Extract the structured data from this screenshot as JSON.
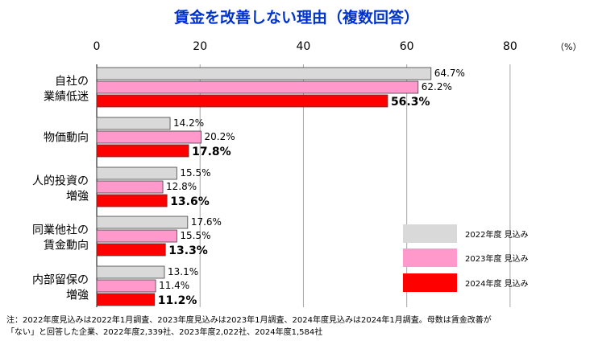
{
  "chart_data": {
    "type": "bar",
    "orientation": "horizontal",
    "title": "賃金を改善しない理由（複数回答）",
    "unit": "（%）",
    "xlim": [
      0,
      90
    ],
    "ticks": [
      0,
      20,
      40,
      60,
      80
    ],
    "categories": [
      [
        "自社の",
        "業績低迷"
      ],
      [
        "物価動向"
      ],
      [
        "人的投資の",
        "増強"
      ],
      [
        "同業他社の",
        "賃金動向"
      ],
      [
        "内部留保の",
        "増強"
      ]
    ],
    "series": [
      {
        "name": "2022年度 見込み",
        "color": "#d9d9d9",
        "values": [
          64.7,
          14.2,
          15.5,
          17.6,
          13.1
        ],
        "labels": [
          "64.7%",
          "14.2%",
          "15.5%",
          "17.6%",
          "13.1%"
        ]
      },
      {
        "name": "2023年度 見込み",
        "color": "#ff99cc",
        "values": [
          62.2,
          20.2,
          12.8,
          15.5,
          11.4
        ],
        "labels": [
          "62.2%",
          "20.2%",
          "12.8%",
          "15.5%",
          "11.4%"
        ]
      },
      {
        "name": "2024年度 見込み",
        "color": "#ff0000",
        "values": [
          56.3,
          17.8,
          13.6,
          13.3,
          11.2
        ],
        "labels": [
          "56.3%",
          "17.8%",
          "13.6%",
          "13.3%",
          "11.2%"
        ]
      }
    ],
    "legend_position": "bottom-right",
    "note": [
      "注：2022年度見込みは2022年1月調査、2023年度見込みは2023年1月調査、2024年度見込みは2024年1月調査。母数は賃金改善が",
      "「ない」と回答した企業、2022年度2,339社、2023年度2,022社、2024年度1,584社"
    ]
  }
}
